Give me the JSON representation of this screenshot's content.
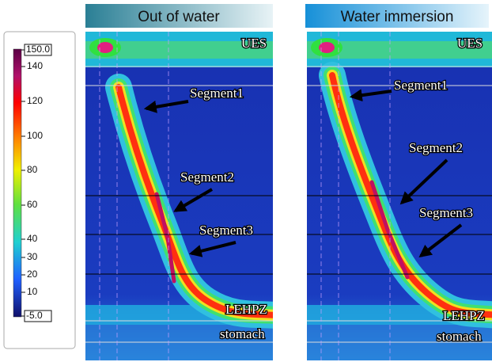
{
  "colorbar": {
    "ticks": [
      {
        "value": 150,
        "label": "150.0"
      },
      140,
      120,
      100,
      80,
      60,
      40,
      30,
      20,
      10,
      {
        "value": -5,
        "label": "-5.0"
      }
    ]
  },
  "panels": [
    {
      "title": "Out of water",
      "ues": "UES",
      "segment1": "Segment1",
      "segment2": "Segment2",
      "segment3": "Segment3",
      "lehpz": "LEHPZ",
      "stomach": "stomach"
    },
    {
      "title": "Water immersion",
      "ues": "UES",
      "segment1": "Segment1",
      "segment2": "Segment2",
      "segment3": "Segment3",
      "lehpz": "LEHPZ",
      "stomach": "stomach"
    }
  ]
}
